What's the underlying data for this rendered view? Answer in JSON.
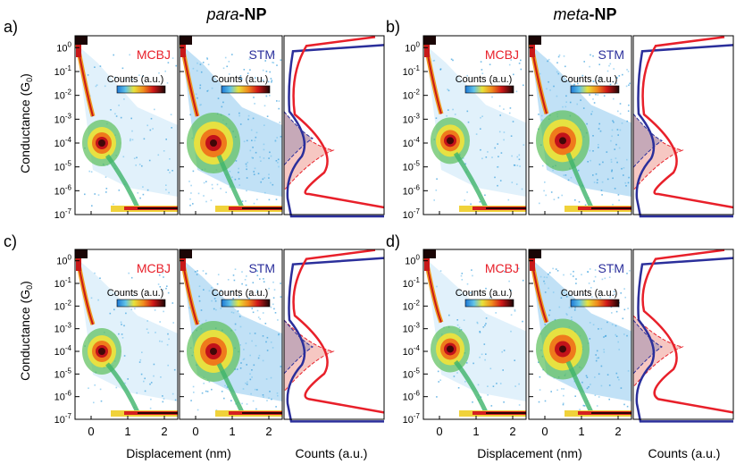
{
  "titles": {
    "left": {
      "italic": "para",
      "bold": "-NP"
    },
    "right": {
      "italic": "meta",
      "bold": "-NP"
    }
  },
  "panel_letters": [
    "a)",
    "b)",
    "c)",
    "d)"
  ],
  "technique_labels": {
    "mcbj": "MCBJ",
    "stm": "STM"
  },
  "colorbar_label": "Counts (a.u.)",
  "axes": {
    "ylabel": "Conductance (G",
    "ylabel_sub": "0",
    "ylabel_close": ")",
    "xlabel_displacement": "Displacement (nm)",
    "xlabel_counts": "Counts (a.u.)",
    "y_ticks": [
      {
        "base": "10",
        "exp": "0"
      },
      {
        "base": "10",
        "exp": "-1"
      },
      {
        "base": "10",
        "exp": "-2"
      },
      {
        "base": "10",
        "exp": "-3"
      },
      {
        "base": "10",
        "exp": "-4"
      },
      {
        "base": "10",
        "exp": "-5"
      },
      {
        "base": "10",
        "exp": "-6"
      },
      {
        "base": "10",
        "exp": "-7"
      }
    ],
    "x_ticks_mcbj": [
      "0",
      "1",
      "2"
    ],
    "x_ticks_stm": [
      "0",
      "1",
      "2"
    ]
  },
  "colors": {
    "mcbj": "#e8202a",
    "stm": "#2b2f9b",
    "fill_mcbj": "#f6c7c2",
    "fill_stm": "#c6a9b8"
  },
  "chart_data": [
    {
      "panel": "a)",
      "molecule": "para-NP",
      "mcbj_peak_log10G": -4.3,
      "stm_peak_log10G": -3.8
    },
    {
      "panel": "b)",
      "molecule": "meta-NP",
      "mcbj_peak_log10G": -4.3,
      "stm_peak_log10G": -3.9
    },
    {
      "panel": "c)",
      "molecule": "para-NP",
      "mcbj_peak_log10G": -4.0,
      "stm_peak_log10G": -3.8
    },
    {
      "panel": "d)",
      "molecule": "meta-NP",
      "mcbj_peak_log10G": -3.8,
      "stm_peak_log10G": -3.8
    }
  ]
}
